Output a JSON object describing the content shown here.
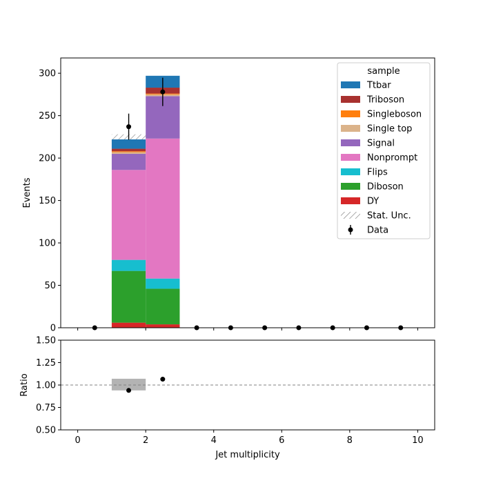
{
  "chart_data": [
    {
      "type": "bar",
      "stacked": true,
      "xlabel": "",
      "ylabel": "Events",
      "xlim": [
        -0.5,
        10.5
      ],
      "ylim": [
        0,
        318
      ],
      "xticks": [
        0,
        2,
        4,
        6,
        8,
        10
      ],
      "yticks": [
        0,
        50,
        100,
        150,
        200,
        250,
        300
      ],
      "ytick_labels": [
        "0",
        "50",
        "100",
        "150",
        "200",
        "250",
        "300"
      ],
      "bins": [
        [
          1,
          2
        ],
        [
          2,
          3
        ]
      ],
      "series": [
        {
          "name": "DY",
          "color": "#d62728",
          "values": [
            6,
            4
          ]
        },
        {
          "name": "Diboson",
          "color": "#2ca02c",
          "values": [
            61,
            42
          ]
        },
        {
          "name": "Flips",
          "color": "#17becf",
          "values": [
            13,
            12
          ]
        },
        {
          "name": "Nonprompt",
          "color": "#e377c2",
          "values": [
            106,
            165
          ]
        },
        {
          "name": "Signal",
          "color": "#9467bd",
          "values": [
            19,
            50
          ]
        },
        {
          "name": "Single top",
          "color": "#dbb38a",
          "values": [
            2,
            2
          ]
        },
        {
          "name": "Singleboson",
          "color": "#ff7f0e",
          "values": [
            1,
            1
          ]
        },
        {
          "name": "Triboson",
          "color": "#a8312f",
          "values": [
            3,
            7
          ]
        },
        {
          "name": "Ttbar",
          "color": "#1f77b4",
          "values": [
            11,
            14
          ]
        }
      ],
      "stat_unc": {
        "name": "Stat. Unc.",
        "bins": [
          [
            1,
            2
          ]
        ],
        "low": [
          222
        ],
        "high": [
          228
        ]
      },
      "data_points": {
        "name": "Data",
        "x": [
          0.5,
          1.5,
          2.5,
          3.5,
          4.5,
          5.5,
          6.5,
          7.5,
          8.5,
          9.5
        ],
        "y": [
          0,
          237,
          278,
          0,
          0,
          0,
          0,
          0,
          0,
          0
        ],
        "yerr": [
          0,
          15.4,
          16.7,
          0,
          0,
          0,
          0,
          0,
          0,
          0
        ]
      },
      "legend": {
        "title": "sample",
        "position": "top-right",
        "entries": [
          "Ttbar",
          "Triboson",
          "Singleboson",
          "Single top",
          "Signal",
          "Nonprompt",
          "Flips",
          "Diboson",
          "DY",
          "Stat. Unc.",
          "Data"
        ]
      }
    },
    {
      "type": "scatter",
      "xlabel": "Jet multiplicity",
      "ylabel": "Ratio",
      "xlim": [
        -0.5,
        10.5
      ],
      "ylim": [
        0.5,
        1.5
      ],
      "xticks": [
        0,
        2,
        4,
        6,
        8,
        10
      ],
      "xtick_labels": [
        "0",
        "2",
        "4",
        "6",
        "8",
        "10"
      ],
      "yticks": [
        0.5,
        0.75,
        1.0,
        1.25,
        1.5
      ],
      "ytick_labels": [
        "0.50",
        "0.75",
        "1.00",
        "1.25",
        "1.50"
      ],
      "reference_line": 1.0,
      "unc_band": {
        "bins": [
          [
            1,
            2
          ]
        ],
        "low": [
          0.94
        ],
        "high": [
          1.07
        ]
      },
      "points": {
        "x": [
          1.5,
          2.5
        ],
        "y": [
          0.94,
          1.065
        ]
      }
    }
  ],
  "colors": {
    "stat_unc_hatch": "#777777",
    "ratio_band": "#b3b3b3",
    "reference_line": "#808080",
    "data_marker": "#000000"
  }
}
